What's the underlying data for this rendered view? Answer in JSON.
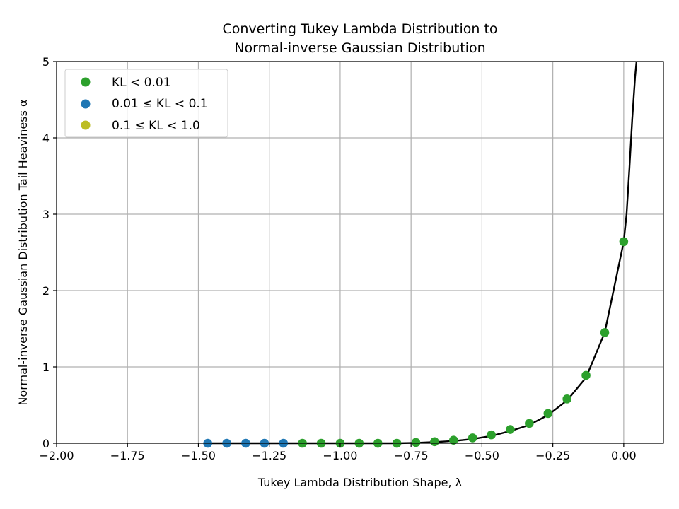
{
  "chart_data": {
    "type": "scatter",
    "title_lines": [
      "Converting Tukey Lambda Distribution to",
      "Normal-inverse Gaussian Distribution"
    ],
    "xlabel": "Tukey Lambda Distribution Shape, λ",
    "ylabel": "Normal-inverse Gaussian Distribution Tail Heaviness α",
    "xlim": [
      -2.0,
      0.14
    ],
    "ylim": [
      0,
      5
    ],
    "grid": true,
    "legend_position": "upper-left",
    "x_ticks": [
      -2.0,
      -1.75,
      -1.5,
      -1.25,
      -1.0,
      -0.75,
      -0.5,
      -0.25,
      0.0
    ],
    "x_tick_labels": [
      "−2.00",
      "−1.75",
      "−1.50",
      "−1.25",
      "−1.00",
      "−0.75",
      "−0.50",
      "−0.25",
      "0.00"
    ],
    "y_ticks": [
      0,
      1,
      2,
      3,
      4,
      5
    ],
    "y_tick_labels": [
      "0",
      "1",
      "2",
      "3",
      "4",
      "5"
    ],
    "series": [
      {
        "name": "KL < 0.01",
        "color": "#2ca02c",
        "points": [
          [
            -1.133,
            0.0
          ],
          [
            -1.067,
            0.0
          ],
          [
            -1.0,
            0.0
          ],
          [
            -0.933,
            0.0
          ],
          [
            -0.867,
            0.0
          ],
          [
            -0.8,
            0.0
          ],
          [
            -0.733,
            0.01
          ],
          [
            -0.667,
            0.02
          ],
          [
            -0.6,
            0.04
          ],
          [
            -0.533,
            0.07
          ],
          [
            -0.467,
            0.11
          ],
          [
            -0.4,
            0.18
          ],
          [
            -0.333,
            0.26
          ],
          [
            -0.267,
            0.39
          ],
          [
            -0.2,
            0.58
          ],
          [
            -0.133,
            0.89
          ],
          [
            -0.067,
            1.45
          ],
          [
            0.0,
            2.64
          ]
        ]
      },
      {
        "name": "0.01 ≤ KL < 0.1",
        "color": "#1f77b4",
        "points": [
          [
            -1.467,
            0.0
          ],
          [
            -1.4,
            0.0
          ],
          [
            -1.333,
            0.0
          ],
          [
            -1.267,
            0.0
          ],
          [
            -1.2,
            0.0
          ]
        ]
      },
      {
        "name": "0.1 ≤ KL < 1.0",
        "color": "#bcbd22",
        "points": []
      }
    ],
    "fit_line": {
      "color": "#000000",
      "points": [
        [
          -1.467,
          0.0
        ],
        [
          -1.2,
          0.0
        ],
        [
          -1.0,
          0.0
        ],
        [
          -0.8,
          0.0
        ],
        [
          -0.733,
          0.005
        ],
        [
          -0.667,
          0.015
        ],
        [
          -0.6,
          0.03
        ],
        [
          -0.533,
          0.055
        ],
        [
          -0.467,
          0.095
        ],
        [
          -0.4,
          0.16
        ],
        [
          -0.333,
          0.24
        ],
        [
          -0.267,
          0.37
        ],
        [
          -0.2,
          0.56
        ],
        [
          -0.133,
          0.86
        ],
        [
          -0.067,
          1.45
        ],
        [
          0.0,
          2.64
        ],
        [
          0.01,
          3.0
        ],
        [
          0.02,
          3.6
        ],
        [
          0.03,
          4.25
        ],
        [
          0.04,
          4.8
        ],
        [
          0.045,
          5.0
        ]
      ]
    }
  }
}
